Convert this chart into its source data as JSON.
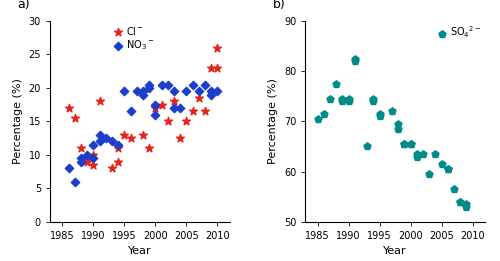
{
  "cl_data": [
    [
      1986,
      17.0
    ],
    [
      1987,
      15.5
    ],
    [
      1988,
      11.0
    ],
    [
      1989,
      9.5
    ],
    [
      1989,
      9.0
    ],
    [
      1990,
      10.0
    ],
    [
      1990,
      8.5
    ],
    [
      1991,
      18.0
    ],
    [
      1993,
      8.0
    ],
    [
      1994,
      11.0
    ],
    [
      1994,
      9.0
    ],
    [
      1995,
      13.0
    ],
    [
      1996,
      12.5
    ],
    [
      1998,
      13.0
    ],
    [
      1999,
      11.0
    ],
    [
      2000,
      17.0
    ],
    [
      2001,
      17.5
    ],
    [
      2002,
      15.0
    ],
    [
      2003,
      18.0
    ],
    [
      2004,
      12.5
    ],
    [
      2005,
      15.0
    ],
    [
      2006,
      16.5
    ],
    [
      2007,
      18.5
    ],
    [
      2008,
      16.5
    ],
    [
      2009,
      23.0
    ],
    [
      2010,
      26.0
    ],
    [
      2010,
      23.0
    ]
  ],
  "no3_data": [
    [
      1986,
      8.0
    ],
    [
      1987,
      6.0
    ],
    [
      1988,
      9.5
    ],
    [
      1988,
      9.0
    ],
    [
      1989,
      10.0
    ],
    [
      1990,
      9.5
    ],
    [
      1990,
      11.5
    ],
    [
      1991,
      12.0
    ],
    [
      1991,
      13.0
    ],
    [
      1992,
      12.5
    ],
    [
      1993,
      12.0
    ],
    [
      1994,
      11.5
    ],
    [
      1995,
      19.5
    ],
    [
      1996,
      16.5
    ],
    [
      1997,
      19.5
    ],
    [
      1998,
      19.5
    ],
    [
      1998,
      19.0
    ],
    [
      1999,
      20.5
    ],
    [
      1999,
      20.0
    ],
    [
      2000,
      17.5
    ],
    [
      2000,
      16.0
    ],
    [
      2001,
      20.5
    ],
    [
      2002,
      20.5
    ],
    [
      2003,
      19.5
    ],
    [
      2003,
      17.0
    ],
    [
      2004,
      17.0
    ],
    [
      2005,
      19.5
    ],
    [
      2006,
      20.5
    ],
    [
      2007,
      19.5
    ],
    [
      2008,
      20.5
    ],
    [
      2009,
      19.5
    ],
    [
      2009,
      19.0
    ],
    [
      2010,
      19.5
    ]
  ],
  "so4_data": [
    [
      1985,
      70.5
    ],
    [
      1986,
      71.5
    ],
    [
      1987,
      74.5
    ],
    [
      1988,
      77.5
    ],
    [
      1989,
      74.5
    ],
    [
      1989,
      74.0
    ],
    [
      1990,
      74.5
    ],
    [
      1990,
      74.0
    ],
    [
      1991,
      82.0
    ],
    [
      1991,
      82.5
    ],
    [
      1993,
      65.0
    ],
    [
      1994,
      74.5
    ],
    [
      1994,
      74.0
    ],
    [
      1995,
      71.5
    ],
    [
      1995,
      71.0
    ],
    [
      1997,
      72.0
    ],
    [
      1998,
      68.5
    ],
    [
      1998,
      69.5
    ],
    [
      1999,
      65.5
    ],
    [
      1999,
      65.5
    ],
    [
      2000,
      65.5
    ],
    [
      2000,
      65.5
    ],
    [
      2001,
      63.5
    ],
    [
      2001,
      63.0
    ],
    [
      2002,
      63.5
    ],
    [
      2003,
      59.5
    ],
    [
      2004,
      63.5
    ],
    [
      2005,
      61.5
    ],
    [
      2006,
      60.5
    ],
    [
      2006,
      60.5
    ],
    [
      2007,
      56.5
    ],
    [
      2008,
      54.0
    ],
    [
      2008,
      54.0
    ],
    [
      2009,
      53.5
    ],
    [
      2009,
      53.0
    ]
  ],
  "cl_color": "#e8231a",
  "no3_color": "#1a3fcc",
  "so4_color": "#008b8b",
  "panel_a_ylabel": "Percentage (%)",
  "panel_b_ylabel": "Percentage (%)",
  "xlabel": "Year",
  "panel_a_ylim": [
    0,
    30
  ],
  "panel_b_ylim": [
    50,
    90
  ],
  "panel_a_yticks": [
    0,
    5,
    10,
    15,
    20,
    25,
    30
  ],
  "panel_b_yticks": [
    50,
    60,
    70,
    80,
    90
  ],
  "xlim_a": [
    1983,
    2012
  ],
  "xlim_b": [
    1983,
    2012
  ],
  "xticks": [
    1985,
    1990,
    1995,
    2000,
    2005,
    2010
  ],
  "label_a": "a)",
  "label_b": "b)",
  "cl_label": "Cl$^-$",
  "no3_label": "NO$_3$$^-$",
  "so4_label": "SO$_4$$^{2-}$"
}
